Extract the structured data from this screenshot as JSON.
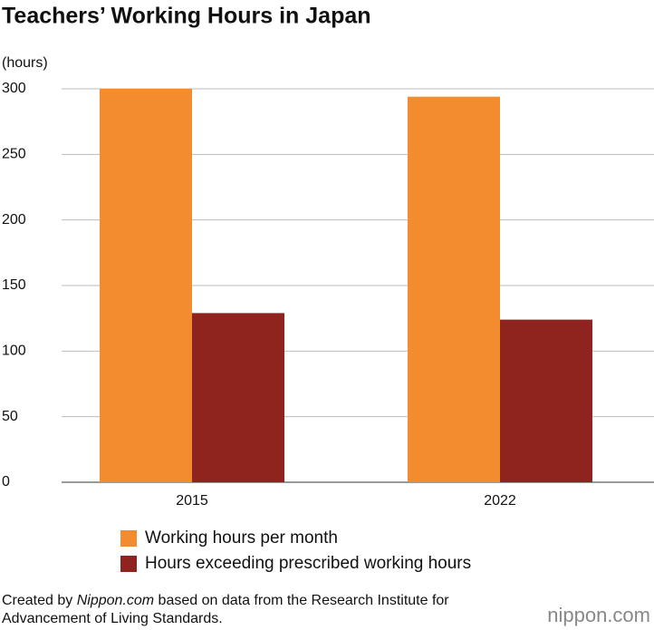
{
  "chart_data": {
    "type": "bar",
    "title": "Teachers’ Working Hours in Japan",
    "y_label": "(hours)",
    "categories": [
      "2015",
      "2022"
    ],
    "series": [
      {
        "name": "Working hours per month",
        "color": "#f28c2e",
        "values": [
          300,
          294
        ]
      },
      {
        "name": "Hours exceeding prescribed working hours",
        "color": "#8e241d",
        "values": [
          129,
          124
        ]
      }
    ],
    "ylim": [
      0,
      300
    ],
    "yticks": [
      0,
      50,
      100,
      150,
      200,
      250,
      300
    ],
    "grid": true,
    "source_prefix": "Created by",
    "source_site": "Nippon.com",
    "source_rest": "based on data from the Research Institute for Advancement of Living Standards.",
    "logo": "nippon.com"
  }
}
